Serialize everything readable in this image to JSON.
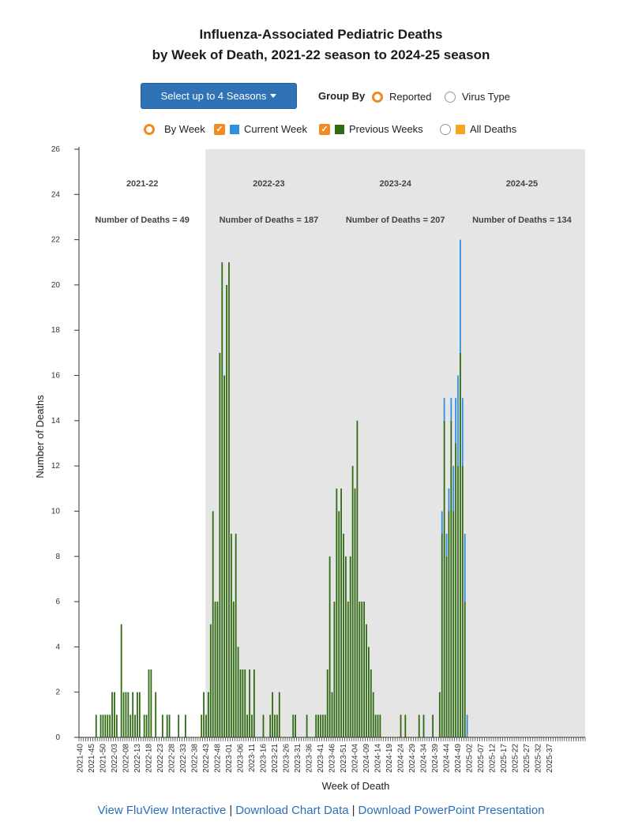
{
  "title": {
    "line1": "Influenza-Associated Pediatric Deaths",
    "line2": "by Week of Death, 2021-22 season to 2024-25 season"
  },
  "controls": {
    "season_select_label": "Select up to 4 Seasons",
    "group_by_label": "Group By",
    "reported_label": "Reported",
    "virus_type_label": "Virus Type",
    "by_week_label": "By Week",
    "current_week_label": "Current Week",
    "previous_weeks_label": "Previous Weeks",
    "all_deaths_label": "All Deaths"
  },
  "footer": {
    "link1": "View FluView Interactive",
    "link2": "Download Chart Data",
    "link3": "Download PowerPoint Presentation",
    "separator": "|"
  },
  "colors": {
    "previous_weeks": "#2e6b12",
    "current_week": "#2f8fe3",
    "all_deaths": "#f5a623",
    "accent": "#f28a1e",
    "season_shade": "#e5e5e5"
  },
  "chart_data": {
    "type": "bar",
    "stacked": true,
    "xlabel": "Week of Death",
    "ylabel": "Number of Deaths",
    "ylim": [
      0,
      26
    ],
    "yticks": [
      0,
      2,
      4,
      6,
      8,
      10,
      12,
      14,
      16,
      18,
      20,
      22,
      24,
      26
    ],
    "x_tick_labels": [
      "2021-40",
      "2021-45",
      "2021-50",
      "2022-03",
      "2022-08",
      "2022-13",
      "2022-18",
      "2022-23",
      "2022-28",
      "2022-33",
      "2022-38",
      "2022-43",
      "2022-48",
      "2023-01",
      "2023-06",
      "2023-11",
      "2023-16",
      "2023-21",
      "2023-26",
      "2023-31",
      "2023-36",
      "2023-41",
      "2023-46",
      "2023-51",
      "2024-04",
      "2024-09",
      "2024-14",
      "2024-19",
      "2024-24",
      "2024-29",
      "2024-34",
      "2024-39",
      "2024-44",
      "2024-49",
      "2025-02",
      "2025-07",
      "2025-12",
      "2025-17",
      "2025-22",
      "2025-27",
      "2025-32",
      "2025-37"
    ],
    "seasons": [
      {
        "label": "2021-22",
        "deaths_label": "Number of Deaths = 49",
        "shaded": false
      },
      {
        "label": "2022-23",
        "deaths_label": "Number of Deaths = 187",
        "shaded": true
      },
      {
        "label": "2023-24",
        "deaths_label": "Number of Deaths = 207",
        "shaded": true
      },
      {
        "label": "2024-25",
        "deaths_label": "Number of Deaths = 134",
        "shaded": true
      }
    ],
    "series": [
      {
        "name": "Previous Weeks",
        "values": [
          0,
          0,
          0,
          0,
          0,
          0,
          0,
          1,
          0,
          1,
          1,
          1,
          1,
          1,
          2,
          2,
          1,
          0,
          5,
          2,
          2,
          2,
          1,
          2,
          1,
          2,
          2,
          0,
          1,
          1,
          3,
          3,
          0,
          2,
          0,
          0,
          1,
          0,
          1,
          1,
          0,
          0,
          0,
          1,
          0,
          0,
          1,
          0,
          0,
          0,
          0,
          0,
          0,
          1,
          2,
          1,
          2,
          5,
          10,
          6,
          6,
          17,
          21,
          16,
          20,
          21,
          9,
          6,
          9,
          4,
          3,
          3,
          3,
          1,
          3,
          1,
          3,
          0,
          0,
          0,
          1,
          0,
          0,
          1,
          2,
          1,
          1,
          2,
          0,
          0,
          0,
          0,
          0,
          1,
          1,
          0,
          0,
          0,
          0,
          1,
          0,
          0,
          0,
          1,
          1,
          1,
          1,
          1,
          3,
          8,
          2,
          6,
          11,
          10,
          11,
          9,
          8,
          6,
          8,
          12,
          11,
          14,
          6,
          6,
          6,
          5,
          4,
          3,
          2,
          1,
          1,
          1,
          0,
          0,
          0,
          0,
          0,
          0,
          0,
          0,
          1,
          0,
          1,
          0,
          0,
          0,
          0,
          0,
          1,
          0,
          1,
          0,
          0,
          0,
          1,
          0,
          0,
          2,
          9,
          14,
          8,
          10,
          14,
          10,
          13,
          12,
          17,
          12,
          6,
          0,
          0,
          0,
          0,
          0,
          0,
          0,
          0,
          0,
          0,
          0,
          0,
          0,
          0,
          0,
          0,
          0,
          0,
          0,
          0,
          0,
          0,
          0,
          0,
          0,
          0,
          0,
          0,
          0,
          0,
          0,
          0,
          0,
          0,
          0,
          0,
          0,
          0,
          0,
          0,
          0,
          0,
          0,
          0,
          0,
          0,
          0,
          0,
          0,
          0,
          0,
          0
        ]
      },
      {
        "name": "Current Week",
        "values": [
          0,
          0,
          0,
          0,
          0,
          0,
          0,
          0,
          0,
          0,
          0,
          0,
          0,
          0,
          0,
          0,
          0,
          0,
          0,
          0,
          0,
          0,
          0,
          0,
          0,
          0,
          0,
          0,
          0,
          0,
          0,
          0,
          0,
          0,
          0,
          0,
          0,
          0,
          0,
          0,
          0,
          0,
          0,
          0,
          0,
          0,
          0,
          0,
          0,
          0,
          0,
          0,
          0,
          0,
          0,
          0,
          0,
          0,
          0,
          0,
          0,
          0,
          0,
          0,
          0,
          0,
          0,
          0,
          0,
          0,
          0,
          0,
          0,
          0,
          0,
          0,
          0,
          0,
          0,
          0,
          0,
          0,
          0,
          0,
          0,
          0,
          0,
          0,
          0,
          0,
          0,
          0,
          0,
          0,
          0,
          0,
          0,
          0,
          0,
          0,
          0,
          0,
          0,
          0,
          0,
          0,
          0,
          0,
          0,
          0,
          0,
          0,
          0,
          0,
          0,
          0,
          0,
          0,
          0,
          0,
          0,
          0,
          0,
          0,
          0,
          0,
          0,
          0,
          0,
          0,
          0,
          0,
          0,
          0,
          0,
          0,
          0,
          0,
          0,
          0,
          0,
          0,
          0,
          0,
          0,
          0,
          0,
          0,
          0,
          0,
          0,
          0,
          0,
          0,
          0,
          0,
          0,
          0,
          1,
          1,
          1,
          1,
          1,
          2,
          2,
          4,
          5,
          3,
          3,
          1,
          0,
          0,
          0,
          0,
          0,
          0,
          0,
          0,
          0,
          0,
          0,
          0,
          0,
          0,
          0,
          0,
          0,
          0,
          0,
          0,
          0,
          0,
          0,
          0,
          0,
          0,
          0,
          0,
          0,
          0,
          0,
          0,
          0,
          0,
          0,
          0,
          0,
          0,
          0,
          0,
          0,
          0,
          0,
          0,
          0,
          0,
          0,
          0,
          0,
          0,
          0,
          0,
          0
        ]
      }
    ]
  }
}
